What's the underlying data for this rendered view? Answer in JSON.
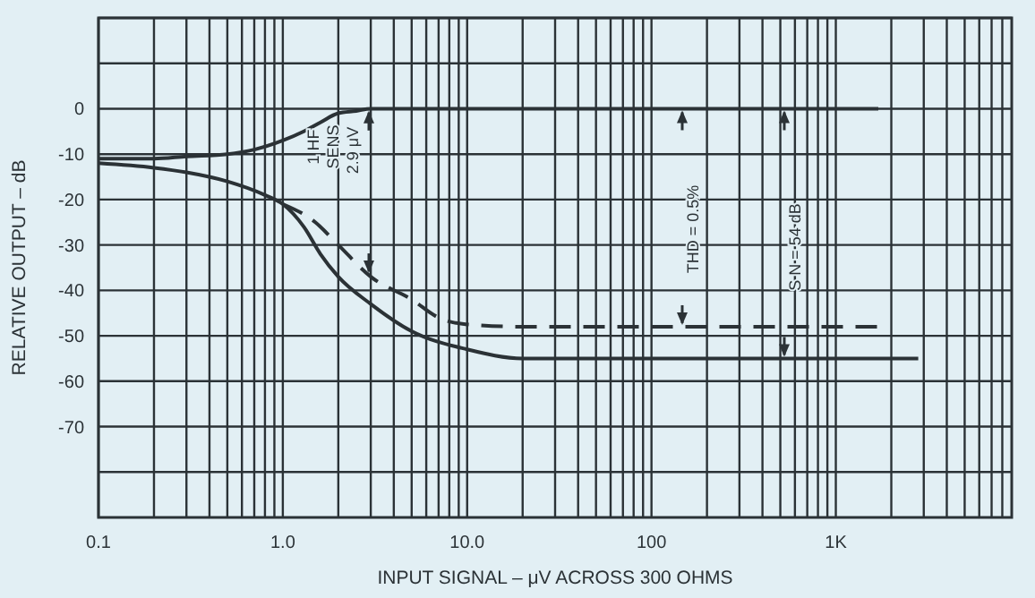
{
  "chart_data": {
    "type": "line",
    "xlabel": "INPUT SIGNAL – μV ACROSS 300 OHMS",
    "ylabel": "RELATIVE OUTPUT – dB",
    "log": "x",
    "grid": true,
    "marker": "none",
    "line_style": "solid",
    "xlim": [
      0.1,
      9000
    ],
    "ylim": [
      -90,
      20
    ],
    "xticks": [
      0.1,
      {
        "value": 0.2,
        "label": null
      },
      {
        "value": 0.3,
        "label": null
      },
      {
        "value": 0.4,
        "label": null
      },
      {
        "value": 0.5,
        "label": null
      },
      {
        "value": 0.6,
        "label": null
      },
      {
        "value": 0.7,
        "label": null
      },
      {
        "value": 0.8,
        "label": null
      },
      {
        "value": 0.9,
        "label": null
      },
      {
        "value": 1,
        "label": "1.0"
      },
      {
        "value": 2,
        "label": null
      },
      {
        "value": 3,
        "label": null
      },
      {
        "value": 4,
        "label": null
      },
      {
        "value": 5,
        "label": null
      },
      {
        "value": 6,
        "label": null
      },
      {
        "value": 7,
        "label": null
      },
      {
        "value": 8,
        "label": null
      },
      {
        "value": 9,
        "label": null
      },
      {
        "value": 10,
        "label": "10.0"
      },
      {
        "value": 20,
        "label": null
      },
      {
        "value": 30,
        "label": null
      },
      {
        "value": 40,
        "label": null
      },
      {
        "value": 50,
        "label": null
      },
      {
        "value": 60,
        "label": null
      },
      {
        "value": 70,
        "label": null
      },
      {
        "value": 80,
        "label": null
      },
      {
        "value": 90,
        "label": null
      },
      100,
      {
        "value": 200,
        "label": null
      },
      {
        "value": 300,
        "label": null
      },
      {
        "value": 400,
        "label": null
      },
      {
        "value": 500,
        "label": null
      },
      {
        "value": 600,
        "label": null
      },
      {
        "value": 700,
        "label": null
      },
      {
        "value": 800,
        "label": null
      },
      {
        "value": 900,
        "label": null
      },
      {
        "value": 1000,
        "label": "1K"
      },
      {
        "value": 2000,
        "label": null
      },
      {
        "value": 3000,
        "label": null
      },
      {
        "value": 4000,
        "label": null
      },
      {
        "value": 5000,
        "label": null
      },
      {
        "value": 6000,
        "label": null
      },
      {
        "value": 7000,
        "label": null
      },
      {
        "value": 8000,
        "label": null
      }
    ],
    "yticks": [
      {
        "value": 20,
        "label": null
      },
      {
        "value": 10,
        "label": null
      },
      0,
      -10,
      -20,
      -30,
      -40,
      -50,
      -60,
      -70,
      {
        "value": -80,
        "label": null
      }
    ],
    "series": [
      {
        "color": "#2b3236",
        "x": [
          0.1,
          0.2,
          0.3,
          0.5,
          0.7,
          1.0,
          1.3,
          1.6,
          2.0,
          2.5,
          3.0,
          10,
          100,
          1700
        ],
        "values": [
          -11,
          -11,
          -10.5,
          -10,
          -9,
          -7,
          -5,
          -3,
          -1,
          -0.5,
          0,
          0,
          0,
          0
        ]
      },
      {
        "color": "#2b3236",
        "line_style": "dashed",
        "x": [
          1.0,
          1.5,
          2.0,
          3.0,
          5.0,
          7.0,
          10,
          20,
          100,
          1700
        ],
        "values": [
          -21,
          -25,
          -30,
          -37,
          -42,
          -46,
          -47.5,
          -48,
          -48,
          -48
        ]
      },
      {
        "color": "#2b3236",
        "x": [
          0.1,
          0.2,
          0.3,
          0.5,
          0.8,
          1.0,
          1.3,
          1.6,
          2.0,
          3.0,
          5.0,
          10,
          20,
          100,
          2800
        ],
        "values": [
          -12,
          -13,
          -14,
          -16,
          -19,
          -21,
          -26,
          -32,
          -37,
          -43,
          -49,
          -53,
          -55,
          -55,
          -55
        ]
      }
    ],
    "annotations": [
      "1 HF",
      "SENS",
      "2.9 μV",
      "THD = 0.5%",
      "S N = 54 dB"
    ]
  }
}
